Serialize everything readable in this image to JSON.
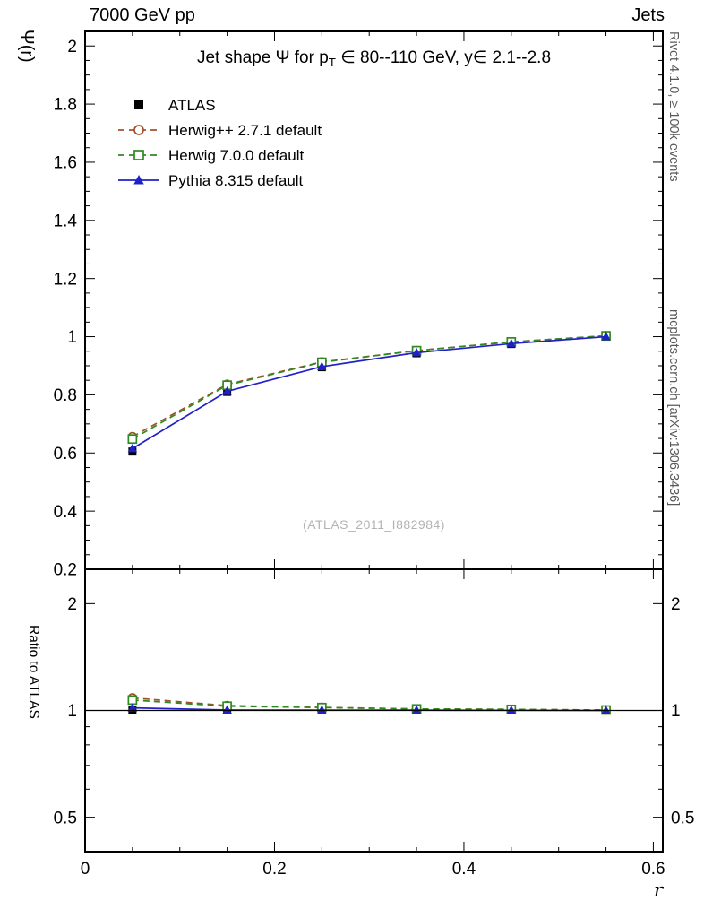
{
  "header": {
    "left": "7000 GeV pp",
    "right": "Jets"
  },
  "title": {
    "prefix": "Jet shape Ψ for p",
    "sub": "T",
    "suffix": " ∈ 80--110 GeV, y∈ 2.1--2.8"
  },
  "watermark": "(ATLAS_2011_I882984)",
  "side_notes": {
    "top": "Rivet 4.1.0, ≥ 100k events",
    "bottom": "mcplots.cern.ch [arXiv:1306.3436]"
  },
  "axes": {
    "x": {
      "label": "r",
      "min": 0,
      "max": 0.61,
      "major_ticks": [
        0,
        0.2,
        0.4,
        0.6
      ],
      "minor_step": 0.05
    },
    "y_main": {
      "label": "Ψ(r)",
      "min": 0.2,
      "max": 2.05,
      "major_step": 0.2,
      "minor_step": 0.05
    },
    "y_ratio": {
      "label": "Ratio to ATLAS",
      "scale": "log",
      "min": 0.4,
      "max": 2.5,
      "ticks": [
        0.4,
        0.5,
        0.6,
        0.7,
        0.8,
        0.9,
        1,
        2
      ],
      "labeled_ticks": [
        0.5,
        1,
        2
      ]
    }
  },
  "chart_data": {
    "type": "line",
    "title": "Jet shape Ψ for p_T ∈ 80--110 GeV, y ∈ 2.1--2.8",
    "xlabel": "r",
    "ylabel": "Ψ(r)",
    "ratio_ylabel": "Ratio to ATLAS",
    "legend_position": "top-left",
    "grid": false,
    "x": [
      0.05,
      0.15,
      0.25,
      0.35,
      0.45,
      0.55
    ],
    "series": [
      {
        "name": "ATLAS",
        "color": "#000000",
        "marker": "square-filled",
        "line": "none",
        "values": [
          0.605,
          0.81,
          0.895,
          0.943,
          0.975,
          1.0
        ],
        "ratio": [
          1.0,
          1.0,
          1.0,
          1.0,
          1.0,
          1.0
        ]
      },
      {
        "name": "Herwig++ 2.7.1 default",
        "color": "#a0522d",
        "marker": "circle-open",
        "line": "dashed",
        "values": [
          0.656,
          0.836,
          0.913,
          0.952,
          0.982,
          1.003
        ],
        "ratio": [
          1.085,
          1.032,
          1.02,
          1.01,
          1.007,
          1.003
        ]
      },
      {
        "name": "Herwig 7.0.0 default",
        "color": "#2e8b22",
        "marker": "square-open",
        "line": "dashed",
        "values": [
          0.648,
          0.833,
          0.912,
          0.952,
          0.982,
          1.003
        ],
        "ratio": [
          1.07,
          1.028,
          1.019,
          1.01,
          1.007,
          1.003
        ]
      },
      {
        "name": "Pythia 8.315 default",
        "color": "#2020c8",
        "marker": "triangle-filled",
        "line": "solid",
        "values": [
          0.615,
          0.812,
          0.897,
          0.945,
          0.976,
          1.0
        ],
        "ratio": [
          1.017,
          1.003,
          1.002,
          1.002,
          1.001,
          1.0
        ]
      }
    ],
    "ratio_reference": 1
  }
}
